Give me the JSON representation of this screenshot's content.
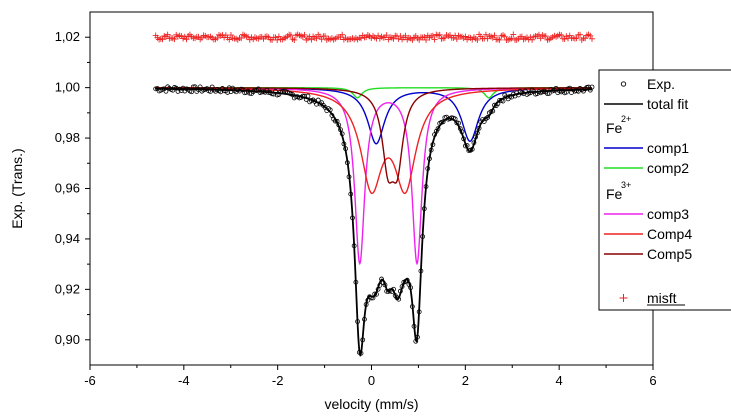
{
  "chart_data": {
    "type": "line",
    "xlabel": "velocity (mm/s)",
    "ylabel": "Exp. (Trans.)",
    "xlim": [
      -6,
      6
    ],
    "ylim": [
      0.89,
      1.03
    ],
    "x_ticks": [
      -6,
      -4,
      -2,
      0,
      2,
      4,
      6
    ],
    "x_tick_labels": [
      "-6",
      "-4",
      "-2",
      "0",
      "2",
      "4",
      "6"
    ],
    "y_ticks": [
      0.9,
      0.92,
      0.94,
      0.96,
      0.98,
      1.0,
      1.02
    ],
    "y_tick_labels": [
      "0,90",
      "0,92",
      "0,94",
      "0,96",
      "0,98",
      "1,00",
      "1,02"
    ],
    "grid": false,
    "legend_position": "right",
    "legend": [
      {
        "label": "Exp.",
        "marker": "circle",
        "color": "#000000"
      },
      {
        "label": "total fit",
        "marker": "line",
        "color": "#000000"
      },
      {
        "group_label": "Fe",
        "group_sup": "2+"
      },
      {
        "label": "comp1",
        "marker": "line",
        "color": "#0000cc"
      },
      {
        "label": "comp2",
        "marker": "line",
        "color": "#22dd22"
      },
      {
        "group_label": "Fe",
        "group_sup": "3+"
      },
      {
        "label": "comp3",
        "marker": "line",
        "color": "#ee22ee"
      },
      {
        "label": "Comp4",
        "marker": "line",
        "color": "#ee2222"
      },
      {
        "label": "Comp5",
        "marker": "line",
        "color": "#880000"
      },
      {
        "label": "misft",
        "marker": "plus",
        "color": "#ee2222"
      }
    ],
    "x_range": [
      -4.6,
      4.7
    ],
    "components": [
      {
        "name": "comp1",
        "color": "#0000cc",
        "lines": [
          {
            "center": 0.1,
            "depth": 0.022,
            "hwhm": 0.22
          },
          {
            "center": 2.1,
            "depth": 0.021,
            "hwhm": 0.22
          }
        ]
      },
      {
        "name": "comp2",
        "color": "#22dd22",
        "lines": [
          {
            "center": -0.3,
            "depth": 0.004,
            "hwhm": 0.12
          },
          {
            "center": 2.5,
            "depth": 0.004,
            "hwhm": 0.12
          }
        ]
      },
      {
        "name": "comp3",
        "color": "#ee22ee",
        "lines": [
          {
            "center": -0.25,
            "depth": 0.069,
            "hwhm": 0.13
          },
          {
            "center": 0.97,
            "depth": 0.069,
            "hwhm": 0.13
          }
        ]
      },
      {
        "name": "Comp4",
        "color": "#ee2222",
        "lines": [
          {
            "center": 0.0,
            "depth": 0.037,
            "hwhm": 0.28
          },
          {
            "center": 0.72,
            "depth": 0.037,
            "hwhm": 0.28
          }
        ]
      },
      {
        "name": "Comp5",
        "color": "#880000",
        "lines": [
          {
            "center": 0.35,
            "depth": 0.027,
            "hwhm": 0.15
          },
          {
            "center": 0.55,
            "depth": 0.027,
            "hwhm": 0.15
          }
        ]
      }
    ],
    "misfit_level": 1.02
  }
}
